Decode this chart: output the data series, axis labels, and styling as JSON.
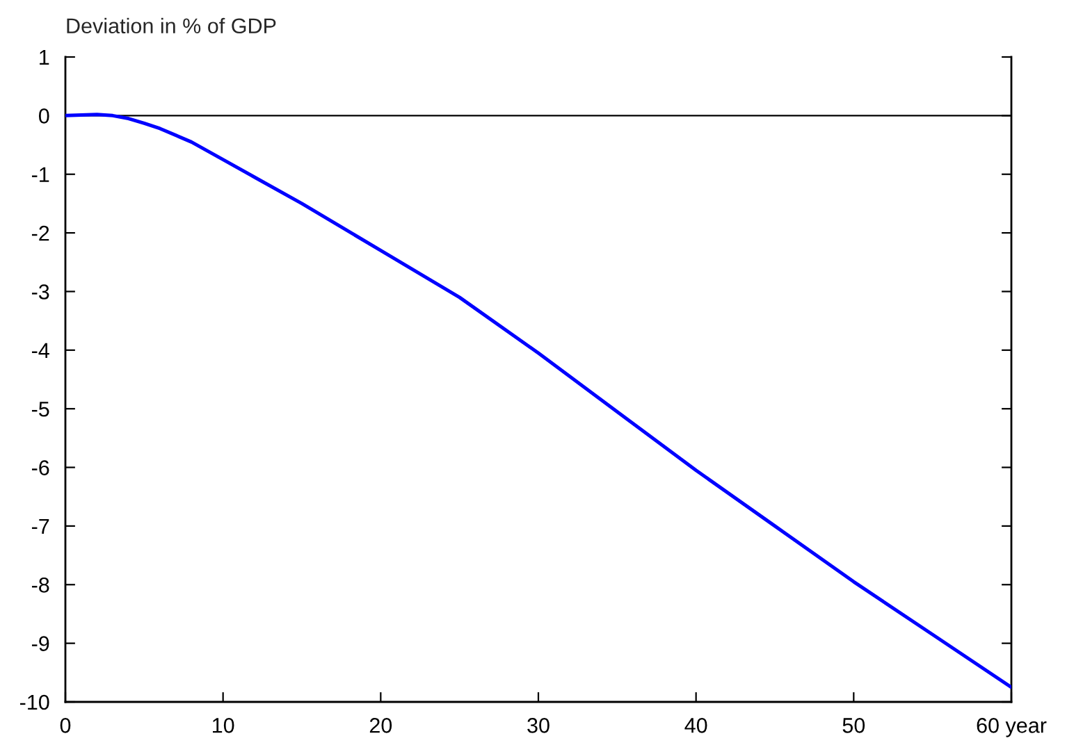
{
  "chart_data": {
    "type": "line",
    "ylabel": "Deviation in % of GDP",
    "x": [
      0,
      1,
      2,
      3,
      4,
      5,
      6,
      8,
      10,
      12,
      15,
      20,
      25,
      30,
      35,
      40,
      45,
      50,
      55,
      60
    ],
    "series": [
      {
        "color": "#0000ff",
        "values": [
          0,
          0.01,
          0.02,
          0,
          -0.05,
          -0.13,
          -0.22,
          -0.45,
          -0.75,
          -1.05,
          -1.5,
          -2.3,
          -3.1,
          -4.05,
          -5.05,
          -6.05,
          -7.0,
          -7.95,
          -8.85,
          -9.75
        ]
      }
    ],
    "xlim": [
      0,
      60
    ],
    "xticks": [
      0,
      10,
      20,
      30,
      40,
      50,
      {
        "value": 60,
        "label": "60 year"
      }
    ],
    "ylim": [
      -10,
      1
    ],
    "yticks": [
      -10,
      -9,
      -8,
      -7,
      -6,
      -5,
      -4,
      -3,
      -2,
      -1,
      0,
      1
    ],
    "ref_lines": [
      {
        "axis": "y",
        "value": 0,
        "color": "#000000"
      }
    ],
    "grid": false,
    "legend": false,
    "marker": "none",
    "line_style": "solid"
  }
}
